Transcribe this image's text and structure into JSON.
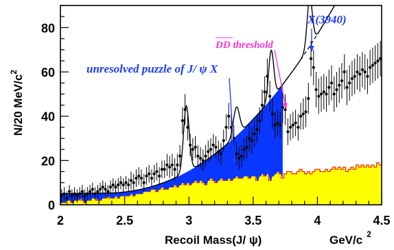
{
  "chart_data": {
    "type": "scatter",
    "title": "",
    "xlabel": "Recoil Mass(J/ ψ)",
    "xunit_base": "GeV/c",
    "xunit_exp": "2",
    "ylabel_base": "N/20 MeV/c",
    "ylabel_exp": "2",
    "xlim": [
      2.0,
      4.5
    ],
    "ylim": [
      0,
      90
    ],
    "xticks": [
      "2",
      "2.5",
      "3",
      "3.5",
      "4",
      "4.5"
    ],
    "yticks": [
      "0",
      "20",
      "40",
      "60",
      "80"
    ],
    "grid": false,
    "colors": {
      "data": "#000000",
      "fit": "#000000",
      "sideband_fill": "#ffff00",
      "sideband_edge": "#ff2000",
      "puzzle_fill": "#0a37ff",
      "puzzle_text": "#1a3aff",
      "threshold_text": "#ff2fd6",
      "x3940_text": "#1a3aff"
    },
    "annotations": {
      "puzzle": "unresolved puzzle of J/ ψ X",
      "threshold": "DD threshold",
      "x3940": "X(3940)"
    },
    "x": [
      2.01,
      2.03,
      2.05,
      2.07,
      2.09,
      2.11,
      2.13,
      2.15,
      2.17,
      2.19,
      2.21,
      2.23,
      2.25,
      2.27,
      2.29,
      2.31,
      2.33,
      2.35,
      2.37,
      2.39,
      2.41,
      2.43,
      2.45,
      2.47,
      2.49,
      2.51,
      2.53,
      2.55,
      2.57,
      2.59,
      2.61,
      2.63,
      2.65,
      2.67,
      2.69,
      2.71,
      2.73,
      2.75,
      2.77,
      2.79,
      2.81,
      2.83,
      2.85,
      2.87,
      2.89,
      2.91,
      2.93,
      2.95,
      2.97,
      2.99,
      3.01,
      3.03,
      3.05,
      3.07,
      3.09,
      3.11,
      3.13,
      3.15,
      3.17,
      3.19,
      3.21,
      3.23,
      3.25,
      3.27,
      3.29,
      3.31,
      3.33,
      3.35,
      3.37,
      3.39,
      3.41,
      3.43,
      3.45,
      3.47,
      3.49,
      3.51,
      3.53,
      3.55,
      3.57,
      3.59,
      3.61,
      3.63,
      3.65,
      3.67,
      3.69,
      3.71,
      3.73,
      3.75,
      3.77,
      3.79,
      3.81,
      3.83,
      3.85,
      3.87,
      3.89,
      3.91,
      3.93,
      3.95,
      3.97,
      3.99,
      4.01,
      4.03,
      4.05,
      4.07,
      4.09,
      4.11,
      4.13,
      4.15,
      4.17,
      4.19,
      4.21,
      4.23,
      4.25,
      4.27,
      4.29,
      4.31,
      4.33,
      4.35,
      4.37,
      4.39,
      4.41,
      4.43,
      4.45,
      4.47,
      4.49
    ],
    "y": [
      4,
      5,
      3,
      6,
      4,
      5,
      4,
      5,
      6,
      4,
      5,
      6,
      7,
      5,
      6,
      7,
      8,
      7,
      6,
      8,
      9,
      8,
      9,
      10,
      9,
      10,
      9,
      11,
      10,
      12,
      13,
      12,
      10,
      13,
      14,
      12,
      14,
      15,
      13,
      16,
      16,
      18,
      17,
      18,
      16,
      18,
      22,
      38,
      43,
      35,
      27,
      25,
      26,
      22,
      21,
      20,
      22,
      24,
      25,
      27,
      26,
      24,
      23,
      29,
      35,
      40,
      35,
      30,
      23,
      21,
      22,
      25,
      26,
      30,
      29,
      32,
      34,
      38,
      45,
      51,
      58,
      49,
      41,
      36,
      37,
      36,
      44,
      43,
      33,
      35,
      36,
      37,
      35,
      40,
      41,
      42,
      48,
      66,
      62,
      52,
      49,
      50,
      51,
      50,
      53,
      55,
      50,
      52,
      54,
      56,
      60,
      53,
      55,
      57,
      58,
      60,
      59,
      61,
      60,
      58,
      62,
      63,
      64,
      65,
      66
    ],
    "yerr": [
      3,
      3,
      3,
      3,
      3,
      3,
      3,
      3,
      3,
      3,
      3,
      3,
      3,
      3,
      3,
      3,
      3,
      3,
      3,
      3,
      3,
      3,
      3,
      3,
      3,
      3,
      3,
      4,
      4,
      4,
      4,
      4,
      4,
      4,
      4,
      4,
      4,
      4,
      4,
      4,
      4,
      5,
      5,
      5,
      5,
      5,
      5,
      6,
      7,
      6,
      5,
      5,
      5,
      5,
      5,
      5,
      5,
      5,
      5,
      5,
      5,
      5,
      5,
      5,
      6,
      6,
      6,
      6,
      5,
      5,
      5,
      5,
      5,
      6,
      6,
      6,
      6,
      6,
      7,
      7,
      8,
      7,
      7,
      6,
      6,
      6,
      7,
      7,
      6,
      6,
      6,
      6,
      6,
      6,
      7,
      7,
      7,
      8,
      8,
      8,
      8,
      8,
      8,
      8,
      8,
      8,
      8,
      8,
      8,
      8,
      8,
      8,
      8,
      8,
      8,
      8,
      8,
      8,
      8,
      8,
      8,
      8,
      8,
      8,
      8
    ],
    "sideband": [
      1,
      1,
      2,
      2,
      1,
      2,
      2,
      3,
      2,
      1,
      2,
      2,
      3,
      3,
      2,
      2,
      3,
      3,
      4,
      3,
      3,
      4,
      3,
      4,
      4,
      4,
      4,
      5,
      4,
      5,
      5,
      5,
      6,
      6,
      6,
      7,
      7,
      6,
      7,
      8,
      7,
      7,
      8,
      8,
      9,
      8,
      9,
      10,
      9,
      10,
      9,
      10,
      11,
      10,
      11,
      10,
      9,
      11,
      12,
      11,
      10,
      11,
      12,
      11,
      11,
      12,
      11,
      12,
      13,
      12,
      12,
      13,
      13,
      12,
      13,
      13,
      11,
      13,
      14,
      13,
      14,
      11,
      13,
      14,
      15,
      14,
      12,
      14,
      15,
      15,
      14,
      14,
      15,
      16,
      15,
      14,
      15,
      14,
      15,
      16,
      16,
      15,
      15,
      16,
      15,
      16,
      17,
      16,
      17,
      16,
      17,
      15,
      16,
      17,
      16,
      18,
      17,
      18,
      17,
      18,
      17,
      18,
      17,
      19,
      18
    ]
  }
}
